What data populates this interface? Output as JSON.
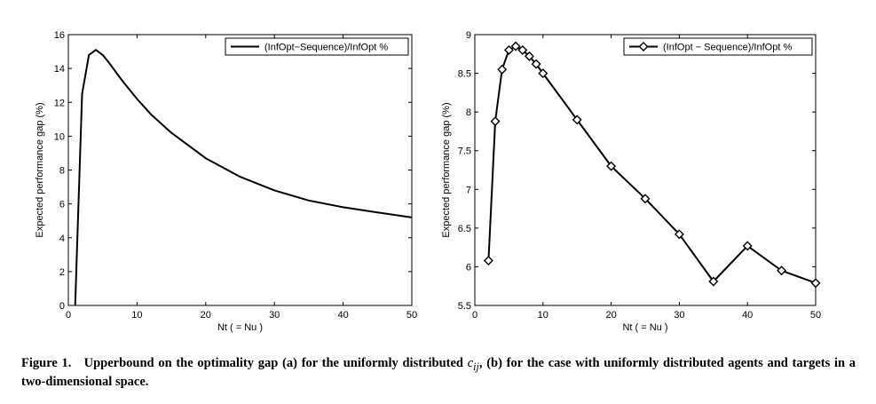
{
  "chart_data": [
    {
      "type": "line",
      "xlabel": "Nt ( = Nu )",
      "ylabel": "Expected performance gap (%)",
      "xlim": [
        0,
        50
      ],
      "ylim": [
        0,
        16
      ],
      "xticks": [
        0,
        10,
        20,
        30,
        40,
        50
      ],
      "yticks": [
        0,
        2,
        4,
        6,
        8,
        10,
        12,
        14,
        16
      ],
      "grid": false,
      "legend_position": "top-right",
      "series": [
        {
          "name": "(InfOpt−Sequence)/InfOpt %",
          "color": "#000000",
          "marker": "none",
          "x": [
            1,
            2,
            3,
            4,
            5,
            6,
            8,
            10,
            12,
            15,
            20,
            25,
            30,
            35,
            40,
            45,
            50
          ],
          "y": [
            0,
            12.5,
            14.8,
            15.1,
            14.8,
            14.3,
            13.2,
            12.2,
            11.3,
            10.2,
            8.7,
            7.6,
            6.8,
            6.2,
            5.8,
            5.5,
            5.2
          ]
        }
      ]
    },
    {
      "type": "line",
      "xlabel": "Nt ( = Nu )",
      "ylabel": "Expected performance gap (%)",
      "xlim": [
        0,
        50
      ],
      "ylim": [
        5.5,
        9
      ],
      "xticks": [
        0,
        10,
        20,
        30,
        40,
        50
      ],
      "yticks": [
        5.5,
        6,
        6.5,
        7,
        7.5,
        8,
        8.5,
        9
      ],
      "grid": false,
      "legend_position": "top-right",
      "series": [
        {
          "name": "(InfOpt − Sequence)/InfOpt %",
          "color": "#000000",
          "marker": "diamond",
          "x": [
            2,
            3,
            4,
            5,
            6,
            7,
            8,
            9,
            10,
            15,
            20,
            25,
            30,
            35,
            40,
            45,
            50
          ],
          "y": [
            6.08,
            7.88,
            8.55,
            8.8,
            8.85,
            8.8,
            8.72,
            8.62,
            8.5,
            7.9,
            7.3,
            6.88,
            6.42,
            5.81,
            6.27,
            5.95,
            5.79
          ]
        }
      ]
    }
  ],
  "caption": {
    "label": "Figure 1.",
    "text_before": "Upperbound on the optimality gap (a) for the uniformly distributed",
    "math": "c",
    "math_sub": "ij",
    "text_after": ", (b) for the case with uniformly distributed agents and targets in a two-dimensional space."
  }
}
